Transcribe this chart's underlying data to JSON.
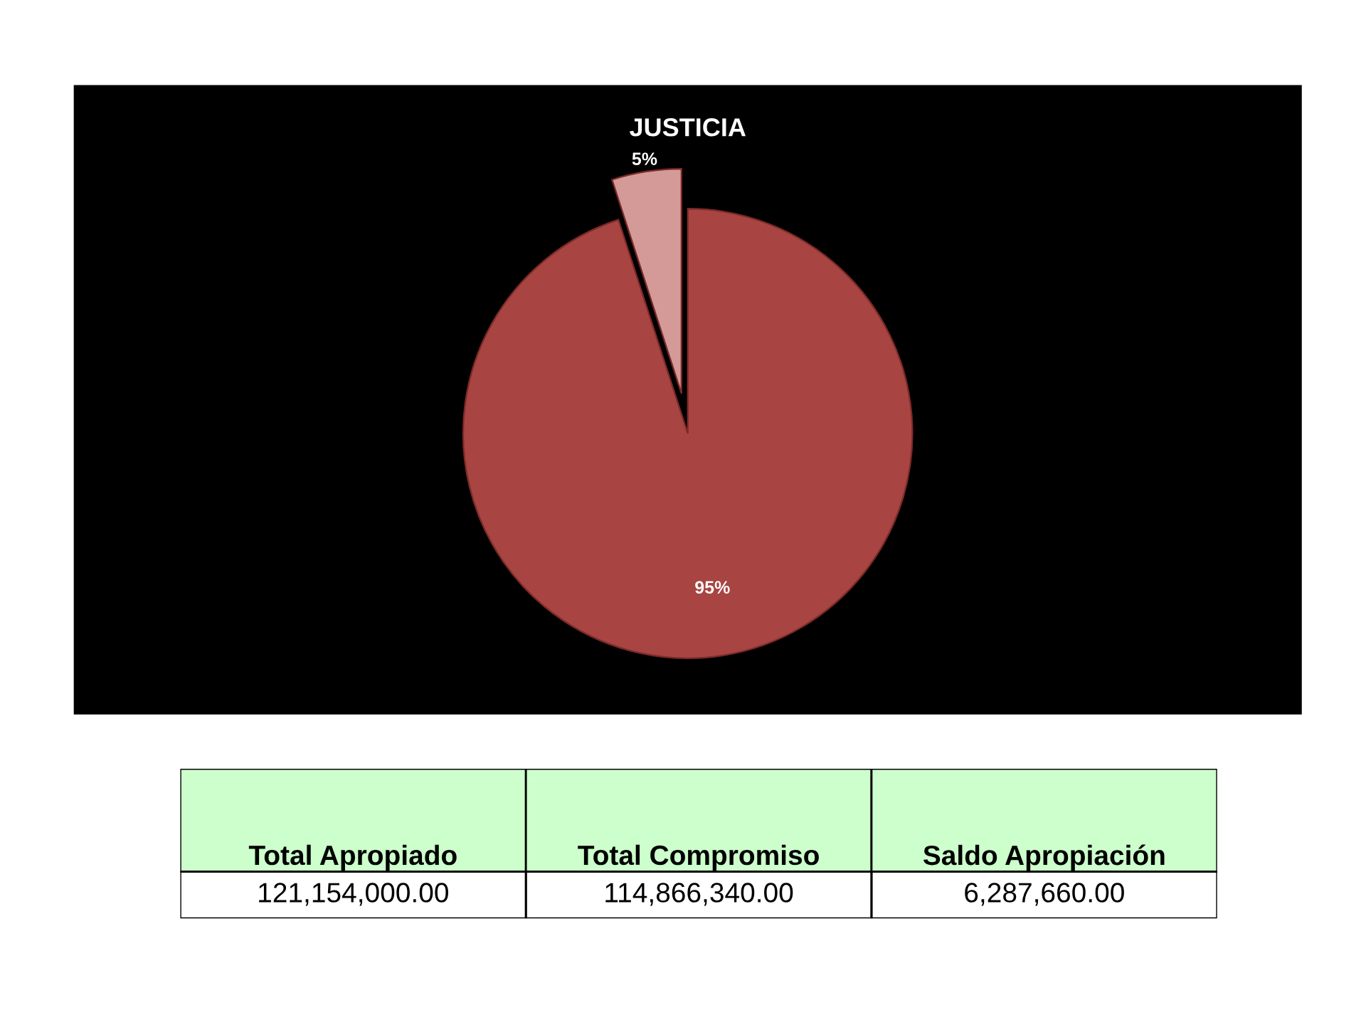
{
  "chart_data": [
    {
      "type": "pie",
      "title": "JUSTICIA",
      "categories": [
        null,
        null
      ],
      "values": [
        95,
        5
      ],
      "colors": [
        "#a84442",
        "#d49a98"
      ],
      "value_labels": [
        "95%",
        "5%"
      ]
    },
    {
      "type": "other",
      "categories": [
        "Total Apropiado",
        "Total Compromiso",
        "Saldo Apropiación"
      ],
      "values": [
        121154000,
        114866340,
        6287660
      ],
      "value_labels": [
        "121,154,000.00",
        "114,866,340.00",
        "6,287,660.00"
      ],
      "color": "#ccffcc"
    }
  ]
}
